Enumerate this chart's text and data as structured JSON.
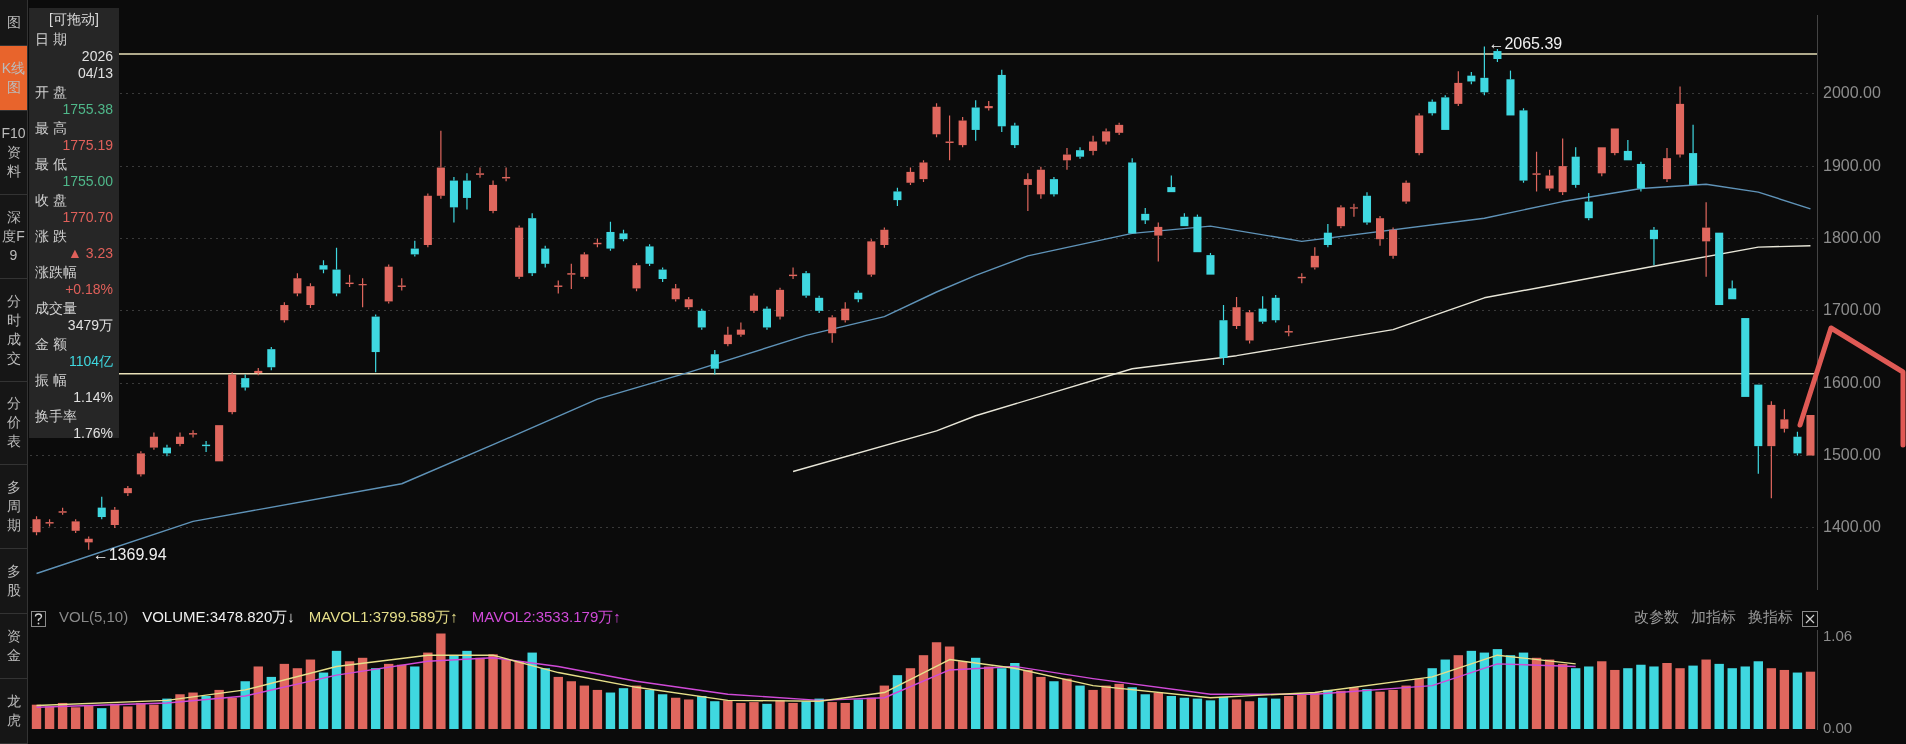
{
  "chart_data": [
    {
      "type": "candlestick",
      "categories": [
        null,
        null,
        null,
        null,
        null,
        null,
        null,
        null,
        null,
        null,
        null,
        null,
        null,
        null,
        null,
        null,
        null,
        null,
        null,
        null,
        null,
        null,
        null,
        null,
        null,
        null,
        null,
        null,
        null,
        null,
        null,
        null,
        null,
        null,
        null,
        null,
        null,
        null,
        null,
        null,
        null,
        null,
        null,
        null,
        null,
        null,
        null,
        null,
        null,
        null,
        null,
        null,
        null,
        null,
        null,
        null,
        null,
        null,
        null,
        null,
        null,
        null,
        null,
        null,
        null,
        null,
        null,
        null,
        null,
        null,
        null,
        null,
        null,
        null,
        null,
        null,
        null,
        null,
        null,
        null,
        null,
        null,
        null,
        null,
        null,
        null,
        null,
        null,
        null,
        null,
        null,
        null,
        null,
        null,
        null,
        null,
        null,
        null,
        null,
        null,
        null,
        null,
        null,
        null,
        null,
        null,
        null,
        null,
        null,
        null,
        null,
        null,
        null,
        null,
        null,
        null,
        null,
        null,
        null,
        null,
        null,
        null,
        null,
        null,
        null,
        null,
        null,
        null,
        null,
        null,
        null,
        null,
        null,
        null,
        null,
        null,
        null
      ],
      "ohlc": [
        [
          1394,
          1416,
          1390,
          1412
        ],
        [
          1406,
          1412,
          1402,
          1408
        ],
        [
          1421,
          1428,
          1418,
          1423
        ],
        [
          1396,
          1412,
          1393,
          1409
        ],
        [
          1380,
          1388,
          1369.94,
          1385
        ],
        [
          1428,
          1443,
          1412,
          1415
        ],
        [
          1404,
          1429,
          1400,
          1425
        ],
        [
          1448,
          1458,
          1444,
          1455
        ],
        [
          1474,
          1506,
          1471,
          1503
        ],
        [
          1511,
          1532,
          1508,
          1526
        ],
        [
          1511,
          1515,
          1499,
          1503
        ],
        [
          1516,
          1532,
          1513,
          1526
        ],
        [
          1529,
          1535,
          1525,
          1531
        ],
        [
          1515,
          1520,
          1505,
          1513
        ],
        [
          1492,
          1544,
          1490,
          1542
        ],
        [
          1560,
          1615,
          1557,
          1612
        ],
        [
          1607,
          1612,
          1590,
          1594
        ],
        [
          1614,
          1621,
          1611,
          1617
        ],
        [
          1647,
          1650,
          1618,
          1622
        ],
        [
          1687,
          1712,
          1684,
          1708
        ],
        [
          1724,
          1752,
          1720,
          1745
        ],
        [
          1708,
          1738,
          1704,
          1734
        ],
        [
          1763,
          1770,
          1752,
          1757
        ],
        [
          1757,
          1787,
          1720,
          1724
        ],
        [
          1737,
          1750,
          1733,
          1739
        ],
        [
          1736,
          1745,
          1705,
          1737
        ],
        [
          1692,
          1695,
          1615,
          1643
        ],
        [
          1713,
          1764,
          1710,
          1761
        ],
        [
          1733,
          1745,
          1728,
          1735
        ],
        [
          1786,
          1797,
          1775,
          1778
        ],
        [
          1791,
          1862,
          1788,
          1859
        ],
        [
          1859,
          1949,
          1855,
          1898
        ],
        [
          1880,
          1885,
          1822,
          1843
        ],
        [
          1880,
          1890,
          1840,
          1856
        ],
        [
          1888,
          1898,
          1884,
          1890
        ],
        [
          1838,
          1880,
          1835,
          1874
        ],
        [
          1883,
          1898,
          1879,
          1885
        ],
        [
          1747,
          1818,
          1744,
          1815
        ],
        [
          1828,
          1835,
          1748,
          1752
        ],
        [
          1786,
          1790,
          1760,
          1765
        ],
        [
          1733,
          1742,
          1724,
          1735
        ],
        [
          1750,
          1765,
          1730,
          1752
        ],
        [
          1747,
          1781,
          1744,
          1778
        ],
        [
          1792,
          1800,
          1788,
          1794
        ],
        [
          1809,
          1823,
          1783,
          1786
        ],
        [
          1807,
          1812,
          1796,
          1799
        ],
        [
          1731,
          1766,
          1727,
          1763
        ],
        [
          1789,
          1792,
          1762,
          1765
        ],
        [
          1757,
          1760,
          1740,
          1744
        ],
        [
          1716,
          1737,
          1713,
          1731
        ],
        [
          1705,
          1719,
          1702,
          1716
        ],
        [
          1700,
          1703,
          1674,
          1677
        ],
        [
          1640,
          1646,
          1612,
          1620
        ],
        [
          1654,
          1678,
          1651,
          1667
        ],
        [
          1667,
          1684,
          1664,
          1674
        ],
        [
          1700,
          1724,
          1697,
          1721
        ],
        [
          1703,
          1706,
          1674,
          1677
        ],
        [
          1692,
          1732,
          1688,
          1729
        ],
        [
          1748,
          1760,
          1744,
          1750
        ],
        [
          1752,
          1755,
          1718,
          1721
        ],
        [
          1718,
          1721,
          1697,
          1700
        ],
        [
          1669,
          1694,
          1656,
          1691
        ],
        [
          1687,
          1712,
          1684,
          1703
        ],
        [
          1725,
          1728,
          1712,
          1716
        ],
        [
          1750,
          1799,
          1747,
          1796
        ],
        [
          1791,
          1815,
          1787,
          1812
        ],
        [
          1865,
          1870,
          1845,
          1853
        ],
        [
          1877,
          1898,
          1874,
          1892
        ],
        [
          1882,
          1908,
          1878,
          1905
        ],
        [
          1944,
          1987,
          1940,
          1982
        ],
        [
          1932,
          1970,
          1908,
          1934
        ],
        [
          1929,
          1968,
          1926,
          1963
        ],
        [
          1981,
          1991,
          1935,
          1950
        ],
        [
          1980,
          1990,
          1977,
          1983
        ],
        [
          2026,
          2033,
          1947,
          1955
        ],
        [
          1956,
          1960,
          1925,
          1929
        ],
        [
          1874,
          1890,
          1838,
          1882
        ],
        [
          1861,
          1899,
          1855,
          1895
        ],
        [
          1882,
          1885,
          1858,
          1861
        ],
        [
          1908,
          1925,
          1895,
          1916
        ],
        [
          1922,
          1926,
          1910,
          1913
        ],
        [
          1921,
          1942,
          1915,
          1934
        ],
        [
          1934,
          1952,
          1930,
          1948
        ],
        [
          1946,
          1960,
          1943,
          1957
        ],
        [
          1905,
          1911,
          1806,
          1807
        ],
        [
          1834,
          1842,
          1820,
          1825
        ],
        [
          1804,
          1822,
          1768,
          1816
        ],
        [
          1871,
          1887,
          1862,
          1864
        ],
        [
          1830,
          1835,
          1815,
          1817
        ],
        [
          1830,
          1833,
          1780,
          1781
        ],
        [
          1777,
          1780,
          1748,
          1750
        ],
        [
          1687,
          1708,
          1625,
          1635
        ],
        [
          1679,
          1719,
          1675,
          1705
        ],
        [
          1659,
          1701,
          1655,
          1698
        ],
        [
          1703,
          1720,
          1682,
          1685
        ],
        [
          1718,
          1722,
          1684,
          1687
        ],
        [
          1670,
          1680,
          1665,
          1672
        ],
        [
          1745,
          1752,
          1738,
          1747
        ],
        [
          1760,
          1788,
          1757,
          1776
        ],
        [
          1808,
          1820,
          1788,
          1791
        ],
        [
          1817,
          1846,
          1814,
          1843
        ],
        [
          1842,
          1848,
          1830,
          1843
        ],
        [
          1859,
          1864,
          1819,
          1822
        ],
        [
          1799,
          1831,
          1790,
          1828
        ],
        [
          1776,
          1815,
          1772,
          1812
        ],
        [
          1851,
          1880,
          1848,
          1877
        ],
        [
          1918,
          1973,
          1915,
          1970
        ],
        [
          1989,
          1992,
          1970,
          1973
        ],
        [
          1995,
          1998,
          1948,
          1950
        ],
        [
          1986,
          2031,
          1983,
          2015
        ],
        [
          2025,
          2030,
          2013,
          2017
        ],
        [
          2022,
          2065.39,
          1998,
          2002
        ],
        [
          2059,
          2062,
          2044,
          2048
        ],
        [
          2020,
          2032,
          1968,
          1970
        ],
        [
          1977,
          1980,
          1877,
          1880
        ],
        [
          1888,
          1920,
          1865,
          1890
        ],
        [
          1869,
          1895,
          1866,
          1887
        ],
        [
          1864,
          1938,
          1860,
          1900
        ],
        [
          1913,
          1926,
          1870,
          1874
        ],
        [
          1851,
          1863,
          1825,
          1828
        ],
        [
          1890,
          1927,
          1886,
          1926
        ],
        [
          1918,
          1954,
          1915,
          1952
        ],
        [
          1921,
          1936,
          1906,
          1908
        ],
        [
          1903,
          1906,
          1865,
          1869
        ],
        [
          1812,
          1816,
          1763,
          1799
        ],
        [
          1882,
          1925,
          1878,
          1911
        ],
        [
          1916,
          2010,
          1912,
          1986
        ],
        [
          1918,
          1957,
          1872,
          1874
        ],
        [
          1796,
          1850,
          1747,
          1815
        ],
        [
          1808,
          1810,
          1706,
          1708
        ],
        [
          1731,
          1742,
          1714,
          1716
        ],
        [
          1690,
          1692,
          1580,
          1581
        ],
        [
          1598,
          1600,
          1475,
          1513
        ],
        [
          1513,
          1575,
          1441,
          1570
        ],
        [
          1537,
          1564,
          1532,
          1550
        ],
        [
          1526,
          1533,
          1500,
          1503
        ],
        [
          1500,
          1556,
          1498,
          1556
        ]
      ],
      "colors": [
        "#e0675e",
        "#e0675e",
        "#e0675e",
        "#e0675e",
        "#e0675e",
        "#3fd8e0",
        "#e0675e",
        "#e0675e",
        "#e0675e",
        "#e0675e",
        "#3fd8e0",
        "#e0675e",
        "#e0675e",
        "#3fd8e0",
        "#e0675e",
        "#e0675e",
        "#3fd8e0",
        "#e0675e",
        "#3fd8e0",
        "#e0675e",
        "#e0675e",
        "#e0675e",
        "#3fd8e0",
        "#3fd8e0",
        "#e0675e",
        "#e0675e",
        "#3fd8e0",
        "#e0675e",
        "#e0675e",
        "#3fd8e0",
        "#e0675e",
        "#e0675e",
        "#3fd8e0",
        "#3fd8e0",
        "#e0675e",
        "#e0675e",
        "#e0675e",
        "#e0675e",
        "#3fd8e0",
        "#3fd8e0",
        "#e0675e",
        "#e0675e",
        "#e0675e",
        "#e0675e",
        "#3fd8e0",
        "#3fd8e0",
        "#e0675e",
        "#3fd8e0",
        "#3fd8e0",
        "#e0675e",
        "#e0675e",
        "#3fd8e0",
        "#3fd8e0",
        "#e0675e",
        "#e0675e",
        "#e0675e",
        "#3fd8e0",
        "#e0675e",
        "#e0675e",
        "#3fd8e0",
        "#3fd8e0",
        "#e0675e",
        "#e0675e",
        "#3fd8e0",
        "#e0675e",
        "#e0675e",
        "#3fd8e0",
        "#e0675e",
        "#e0675e",
        "#e0675e",
        "#e0675e",
        "#e0675e",
        "#3fd8e0",
        "#e0675e",
        "#3fd8e0",
        "#3fd8e0",
        "#e0675e",
        "#e0675e",
        "#3fd8e0",
        "#e0675e",
        "#3fd8e0",
        "#e0675e",
        "#e0675e",
        "#e0675e",
        "#3fd8e0",
        "#3fd8e0",
        "#e0675e",
        "#3fd8e0",
        "#3fd8e0",
        "#3fd8e0",
        "#3fd8e0",
        "#3fd8e0",
        "#e0675e",
        "#e0675e",
        "#3fd8e0",
        "#3fd8e0",
        "#e0675e",
        "#e0675e",
        "#e0675e",
        "#3fd8e0",
        "#e0675e",
        "#e0675e",
        "#3fd8e0",
        "#e0675e",
        "#e0675e",
        "#e0675e",
        "#e0675e",
        "#3fd8e0",
        "#3fd8e0",
        "#e0675e",
        "#3fd8e0",
        "#3fd8e0",
        "#3fd8e0",
        "#3fd8e0",
        "#3fd8e0",
        "#e0675e",
        "#e0675e",
        "#e0675e",
        "#3fd8e0",
        "#3fd8e0",
        "#e0675e",
        "#e0675e",
        "#3fd8e0",
        "#3fd8e0",
        "#3fd8e0",
        "#e0675e",
        "#e0675e",
        "#3fd8e0",
        "#e0675e",
        "#3fd8e0",
        "#3fd8e0",
        "#3fd8e0",
        "#3fd8e0",
        "#e0675e",
        "#e0675e",
        "#3fd8e0",
        "#e0675e"
      ],
      "series": [
        {
          "type": "line",
          "color": "#5f93b8",
          "values": [
            1337,
            null,
            null,
            null,
            null,
            null,
            null,
            null,
            null,
            null,
            null,
            null,
            1409,
            null,
            null,
            null,
            null,
            null,
            null,
            null,
            null,
            null,
            null,
            null,
            null,
            null,
            null,
            null,
            1461,
            null,
            null,
            null,
            null,
            null,
            null,
            1515,
            null,
            null,
            null,
            null,
            null,
            null,
            null,
            1578,
            null,
            null,
            null,
            null,
            null,
            null,
            1615,
            null,
            null,
            null,
            null,
            null,
            null,
            null,
            null,
            1666,
            null,
            null,
            null,
            null,
            null,
            1692,
            null,
            null,
            null,
            1726,
            null,
            null,
            1749,
            null,
            null,
            null,
            1776,
            null,
            null,
            null,
            null,
            null,
            null,
            null,
            1807,
            null,
            null,
            null,
            null,
            null,
            1817,
            null,
            null,
            null,
            null,
            null,
            null,
            1796,
            null,
            null,
            null,
            null,
            null,
            null,
            null,
            null,
            null,
            null,
            null,
            null,
            null,
            1828,
            null,
            null,
            null,
            null,
            null,
            1851,
            null,
            null,
            null,
            null,
            null,
            1869,
            null,
            null,
            null,
            null,
            1875,
            null,
            null,
            null,
            1864,
            null,
            null,
            null,
            1841
          ]
        },
        {
          "type": "line",
          "color": "#e8e6d8",
          "values": [
            null,
            null,
            null,
            null,
            null,
            null,
            null,
            null,
            null,
            null,
            null,
            null,
            null,
            null,
            null,
            null,
            null,
            null,
            null,
            null,
            null,
            null,
            null,
            null,
            null,
            null,
            null,
            null,
            null,
            null,
            null,
            null,
            null,
            null,
            null,
            null,
            null,
            null,
            null,
            null,
            null,
            null,
            null,
            null,
            null,
            null,
            null,
            null,
            null,
            null,
            null,
            null,
            null,
            null,
            null,
            null,
            null,
            null,
            1478,
            null,
            null,
            null,
            null,
            null,
            null,
            null,
            null,
            null,
            null,
            1534,
            null,
            null,
            1555,
            null,
            null,
            null,
            null,
            null,
            null,
            null,
            null,
            null,
            null,
            null,
            1620,
            null,
            null,
            null,
            null,
            null,
            null,
            null,
            1638,
            null,
            null,
            null,
            null,
            null,
            null,
            null,
            null,
            null,
            null,
            null,
            1674,
            null,
            null,
            null,
            null,
            null,
            null,
            1718,
            null,
            null,
            null,
            null,
            null,
            null,
            null,
            null,
            null,
            null,
            null,
            null,
            null,
            1765,
            null,
            null,
            null,
            null,
            null,
            null,
            1788,
            null,
            null,
            null,
            1790
          ]
        }
      ],
      "ylim": [
        1315,
        2108
      ],
      "yticks": [
        {
          "value": 1400,
          "label": "1400.00"
        },
        {
          "value": 1500,
          "label": "1500.00"
        },
        {
          "value": 1600,
          "label": "1600.00"
        },
        {
          "value": 1700,
          "label": "1700.00"
        },
        {
          "value": 1800,
          "label": "1800.00"
        },
        {
          "value": 1900,
          "label": "1900.00"
        },
        {
          "value": 2000,
          "label": "2000.00"
        }
      ],
      "grid": "y",
      "tick_labels": "y",
      "ref_lines": [
        {
          "axis": "y",
          "value": 2055,
          "color": "#e8e0b8"
        },
        {
          "axis": "y",
          "value": 1613,
          "color": "#e8e0b8"
        }
      ],
      "annotations": [
        "←2065.39",
        "←1369.94"
      ]
    },
    {
      "type": "bar",
      "categories": [
        null,
        null,
        null,
        null,
        null,
        null,
        null,
        null,
        null,
        null,
        null,
        null,
        null,
        null,
        null,
        null,
        null,
        null,
        null,
        null,
        null,
        null,
        null,
        null,
        null,
        null,
        null,
        null,
        null,
        null,
        null,
        null,
        null,
        null,
        null,
        null,
        null,
        null,
        null,
        null,
        null,
        null,
        null,
        null,
        null,
        null,
        null,
        null,
        null,
        null,
        null,
        null,
        null,
        null,
        null,
        null,
        null,
        null,
        null,
        null,
        null,
        null,
        null,
        null,
        null,
        null,
        null,
        null,
        null,
        null,
        null,
        null,
        null,
        null,
        null,
        null,
        null,
        null,
        null,
        null,
        null,
        null,
        null,
        null,
        null,
        null,
        null,
        null,
        null,
        null,
        null,
        null,
        null,
        null,
        null,
        null,
        null,
        null,
        null,
        null,
        null,
        null,
        null,
        null,
        null,
        null,
        null,
        null,
        null,
        null,
        null,
        null,
        null,
        null,
        null,
        null,
        null,
        null,
        null,
        null,
        null,
        null,
        null,
        null,
        null,
        null,
        null,
        null,
        null,
        null,
        null,
        null,
        null,
        null,
        null,
        null,
        null
      ],
      "series": [
        {
          "type": "bar",
          "colors": [
            "#e0675e",
            "#e0675e",
            "#e0675e",
            "#e0675e",
            "#e0675e",
            "#3fd8e0",
            "#e0675e",
            "#e0675e",
            "#e0675e",
            "#e0675e",
            "#3fd8e0",
            "#e0675e",
            "#e0675e",
            "#3fd8e0",
            "#e0675e",
            "#e0675e",
            "#3fd8e0",
            "#e0675e",
            "#3fd8e0",
            "#e0675e",
            "#e0675e",
            "#e0675e",
            "#3fd8e0",
            "#3fd8e0",
            "#e0675e",
            "#e0675e",
            "#3fd8e0",
            "#e0675e",
            "#e0675e",
            "#3fd8e0",
            "#e0675e",
            "#e0675e",
            "#3fd8e0",
            "#3fd8e0",
            "#e0675e",
            "#e0675e",
            "#e0675e",
            "#e0675e",
            "#3fd8e0",
            "#3fd8e0",
            "#e0675e",
            "#e0675e",
            "#e0675e",
            "#e0675e",
            "#3fd8e0",
            "#3fd8e0",
            "#e0675e",
            "#3fd8e0",
            "#3fd8e0",
            "#e0675e",
            "#e0675e",
            "#3fd8e0",
            "#3fd8e0",
            "#e0675e",
            "#e0675e",
            "#e0675e",
            "#3fd8e0",
            "#e0675e",
            "#e0675e",
            "#3fd8e0",
            "#3fd8e0",
            "#e0675e",
            "#e0675e",
            "#3fd8e0",
            "#e0675e",
            "#e0675e",
            "#3fd8e0",
            "#e0675e",
            "#e0675e",
            "#e0675e",
            "#e0675e",
            "#e0675e",
            "#3fd8e0",
            "#e0675e",
            "#3fd8e0",
            "#3fd8e0",
            "#e0675e",
            "#e0675e",
            "#3fd8e0",
            "#e0675e",
            "#3fd8e0",
            "#e0675e",
            "#e0675e",
            "#e0675e",
            "#3fd8e0",
            "#3fd8e0",
            "#e0675e",
            "#3fd8e0",
            "#3fd8e0",
            "#3fd8e0",
            "#3fd8e0",
            "#3fd8e0",
            "#e0675e",
            "#e0675e",
            "#3fd8e0",
            "#3fd8e0",
            "#e0675e",
            "#e0675e",
            "#e0675e",
            "#3fd8e0",
            "#e0675e",
            "#e0675e",
            "#3fd8e0",
            "#e0675e",
            "#e0675e",
            "#e0675e",
            "#e0675e",
            "#3fd8e0",
            "#3fd8e0",
            "#e0675e",
            "#3fd8e0",
            "#3fd8e0",
            "#3fd8e0",
            "#3fd8e0",
            "#3fd8e0",
            "#e0675e",
            "#e0675e",
            "#e0675e",
            "#3fd8e0",
            "#3fd8e0",
            "#e0675e",
            "#e0675e",
            "#3fd8e0",
            "#3fd8e0",
            "#3fd8e0",
            "#e0675e",
            "#e0675e",
            "#3fd8e0",
            "#e0675e",
            "#3fd8e0",
            "#3fd8e0",
            "#3fd8e0",
            "#3fd8e0",
            "#e0675e",
            "#e0675e",
            "#3fd8e0",
            "#e0675e"
          ],
          "values": [
            0.28,
            0.26,
            0.3,
            0.25,
            0.27,
            0.24,
            0.29,
            0.26,
            0.3,
            0.28,
            0.35,
            0.4,
            0.42,
            0.38,
            0.45,
            0.36,
            0.55,
            0.72,
            0.6,
            0.75,
            0.7,
            0.8,
            0.65,
            0.9,
            0.78,
            0.82,
            0.7,
            0.75,
            0.74,
            0.72,
            0.88,
            1.1,
            0.85,
            0.9,
            0.82,
            0.86,
            0.8,
            0.78,
            0.88,
            0.7,
            0.6,
            0.55,
            0.5,
            0.45,
            0.42,
            0.47,
            0.5,
            0.45,
            0.4,
            0.36,
            0.34,
            0.38,
            0.32,
            0.33,
            0.3,
            0.31,
            0.29,
            0.33,
            0.3,
            0.32,
            0.35,
            0.31,
            0.3,
            0.34,
            0.36,
            0.5,
            0.62,
            0.7,
            0.85,
            1.0,
            0.95,
            0.78,
            0.82,
            0.72,
            0.7,
            0.76,
            0.68,
            0.6,
            0.55,
            0.58,
            0.5,
            0.45,
            0.5,
            0.52,
            0.48,
            0.4,
            0.42,
            0.38,
            0.36,
            0.35,
            0.33,
            0.37,
            0.34,
            0.32,
            0.36,
            0.35,
            0.38,
            0.4,
            0.42,
            0.45,
            0.44,
            0.48,
            0.46,
            0.43,
            0.45,
            0.5,
            0.58,
            0.7,
            0.8,
            0.85,
            0.9,
            0.88,
            0.92,
            0.85,
            0.88,
            0.82,
            0.8,
            0.75,
            0.7,
            0.72,
            0.78,
            0.68,
            0.7,
            0.74,
            0.72,
            0.76,
            0.7,
            0.73,
            0.8,
            0.75,
            0.7,
            0.72,
            0.78,
            0.7,
            0.68,
            0.65,
            0.66
          ]
        },
        {
          "type": "line",
          "name": "MAVOL1:3799.589万↑",
          "color": "#e6df8a",
          "values": [
            0.27,
            null,
            null,
            null,
            null,
            null,
            null,
            null,
            null,
            null,
            0.33,
            null,
            null,
            null,
            null,
            null,
            0.45,
            null,
            null,
            null,
            null,
            null,
            null,
            0.72,
            null,
            null,
            null,
            null,
            null,
            null,
            0.85,
            null,
            null,
            null,
            null,
            0.85,
            null,
            null,
            null,
            null,
            0.65,
            null,
            null,
            null,
            null,
            null,
            0.48,
            null,
            null,
            null,
            null,
            null,
            null,
            0.33,
            null,
            null,
            null,
            null,
            null,
            null,
            0.32,
            null,
            null,
            null,
            null,
            0.42,
            null,
            null,
            null,
            null,
            0.8,
            null,
            null,
            null,
            null,
            0.7,
            null,
            null,
            null,
            null,
            null,
            0.5,
            null,
            null,
            null,
            null,
            null,
            null,
            null,
            null,
            0.36,
            null,
            null,
            null,
            null,
            null,
            null,
            null,
            0.42,
            null,
            null,
            null,
            null,
            null,
            null,
            null,
            null,
            0.6,
            null,
            null,
            null,
            null,
            0.85,
            null,
            null,
            null,
            null,
            null,
            0.75,
            null,
            null,
            null,
            null,
            null,
            null,
            null,
            null,
            null,
            null,
            null,
            null,
            null,
            null,
            null,
            null,
            null,
            null
          ]
        },
        {
          "type": "line",
          "name": "MAVOL2:3533.179万↑",
          "color": "#d04ad8",
          "values": [
            0.25,
            null,
            null,
            null,
            null,
            null,
            null,
            null,
            null,
            null,
            0.3,
            null,
            null,
            null,
            null,
            null,
            0.38,
            null,
            null,
            null,
            null,
            null,
            null,
            0.62,
            null,
            null,
            null,
            null,
            null,
            null,
            0.78,
            null,
            null,
            null,
            null,
            0.82,
            null,
            null,
            null,
            null,
            0.72,
            null,
            null,
            null,
            null,
            null,
            0.55,
            null,
            null,
            null,
            null,
            null,
            null,
            0.4,
            null,
            null,
            null,
            null,
            null,
            null,
            0.33,
            null,
            null,
            null,
            null,
            0.36,
            null,
            null,
            null,
            null,
            0.68,
            null,
            null,
            null,
            null,
            0.72,
            null,
            null,
            null,
            null,
            null,
            0.58,
            null,
            null,
            null,
            null,
            null,
            null,
            null,
            null,
            0.4,
            null,
            null,
            null,
            null,
            null,
            null,
            null,
            0.4,
            null,
            null,
            null,
            null,
            null,
            null,
            null,
            null,
            0.5,
            null,
            null,
            null,
            null,
            0.75,
            null,
            null,
            null,
            null,
            null,
            0.72,
            null,
            null,
            null,
            null,
            null,
            null,
            null,
            null,
            null,
            null,
            null,
            null,
            null,
            null,
            null,
            null,
            null,
            null
          ]
        }
      ],
      "ylim": [
        0,
        1.14
      ],
      "yticks": [
        {
          "value": 0,
          "label": "0.00"
        },
        {
          "value": 1.06,
          "label": "1.06"
        }
      ],
      "tick_labels": "y",
      "legend": "top left",
      "legend_title": "VOL(5,10)",
      "annotations": [
        "VOLUME:3478.820万↓",
        "改参数",
        "加指标",
        "换指标"
      ]
    },
    {
      "type": "other",
      "title": "[可拖动]",
      "categories": [
        "日 期",
        "开 盘",
        "最 高",
        "最 低",
        "收 盘",
        "涨 跌",
        "涨跌幅",
        "成交量",
        "金 额",
        "振 幅",
        "换手率"
      ],
      "value_labels": [
        "2026\n04/13",
        "1755.38",
        "1775.19",
        "1755.00",
        "1770.70",
        "▲ 3.23",
        "+0.18%",
        "3479万",
        "1104亿",
        "1.14%",
        "1.76%"
      ],
      "colors": [
        "#e0e0e0",
        "#4fb88a",
        "#e0605a",
        "#4fb88a",
        "#e0605a",
        "#e0605a",
        "#e0605a",
        "#e0e0e0",
        "#3fd8e0",
        "#e0e0e0",
        "#e0e0e0"
      ]
    },
    {
      "type": "other",
      "categories": [
        "图",
        "K线图",
        "F10资料",
        "深度F9",
        "分时成交",
        "分价表",
        "多周期",
        "多股",
        "资金",
        "龙虎"
      ],
      "colors": [
        "#161616",
        "#e8642c",
        "#161616",
        "#161616",
        "#161616",
        "#161616",
        "#161616",
        "#161616",
        "#161616",
        "#161616"
      ]
    }
  ]
}
